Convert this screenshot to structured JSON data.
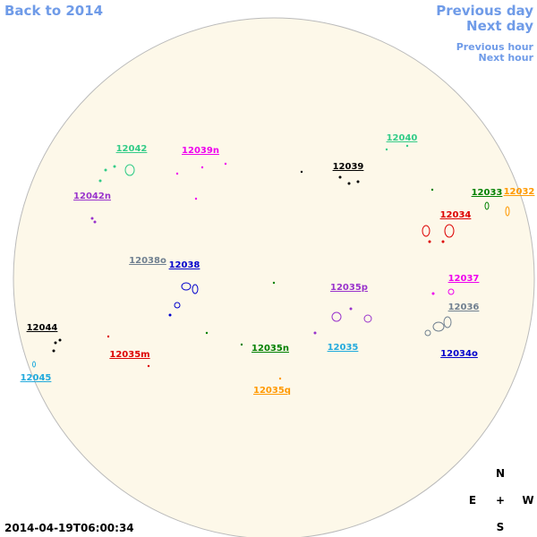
{
  "nav": {
    "back": "Back to 2014",
    "previous_day": "Previous day",
    "next_day": "Next day",
    "previous_hour": "Previous hour",
    "next_hour": "Next hour"
  },
  "regions": [
    {
      "label": "12042",
      "color": "#33cc88"
    },
    {
      "label": "12039n",
      "color": "#ee00ee"
    },
    {
      "label": "12040",
      "color": "#33cc88"
    },
    {
      "label": "12039",
      "color": "#000000"
    },
    {
      "label": "12042n",
      "color": "#9933cc"
    },
    {
      "label": "12033",
      "color": "#008000"
    },
    {
      "label": "12032",
      "color": "#ff9900"
    },
    {
      "label": "12034",
      "color": "#dd0000"
    },
    {
      "label": "12038o",
      "color": "#708090"
    },
    {
      "label": "12038",
      "color": "#0000cc"
    },
    {
      "label": "12035p",
      "color": "#9933cc"
    },
    {
      "label": "12037",
      "color": "#ee00ee"
    },
    {
      "label": "12036",
      "color": "#708090"
    },
    {
      "label": "12044",
      "color": "#000000"
    },
    {
      "label": "12035n",
      "color": "#008000"
    },
    {
      "label": "12035",
      "color": "#22aadd"
    },
    {
      "label": "12034o",
      "color": "#0000cc"
    },
    {
      "label": "12035m",
      "color": "#dd0000"
    },
    {
      "label": "12035q",
      "color": "#ff9900"
    },
    {
      "label": "12045",
      "color": "#22aadd"
    }
  ],
  "compass": {
    "north": "N",
    "east": "E",
    "center": "+",
    "west": "W",
    "south": "S"
  },
  "timestamp": "2014-04-19T06:00:34"
}
